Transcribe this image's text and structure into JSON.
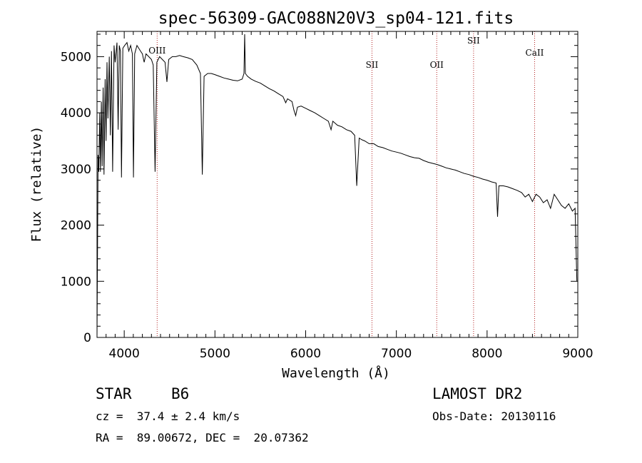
{
  "chart_data": {
    "type": "line",
    "title": "spec-56309-GAC088N20V3_sp04-121.fits",
    "xlabel": "Wavelength (Å)",
    "ylabel": "Flux (relative)",
    "xlim": [
      3700,
      9000
    ],
    "ylim": [
      0,
      5450
    ],
    "xticks": [
      4000,
      5000,
      6000,
      7000,
      8000,
      9000
    ],
    "yticks": [
      0,
      1000,
      2000,
      3000,
      4000,
      5000
    ],
    "grid": false,
    "series": [
      {
        "points": [
          [
            3700,
            0
          ],
          [
            3705,
            1300
          ],
          [
            3712,
            3250
          ],
          [
            3720,
            2950
          ],
          [
            3730,
            4000
          ],
          [
            3738,
            2950
          ],
          [
            3748,
            4200
          ],
          [
            3757,
            3050
          ],
          [
            3768,
            4450
          ],
          [
            3777,
            2900
          ],
          [
            3790,
            4600
          ],
          [
            3800,
            3500
          ],
          [
            3810,
            4900
          ],
          [
            3820,
            3900
          ],
          [
            3835,
            5000
          ],
          [
            3847,
            3600
          ],
          [
            3860,
            5100
          ],
          [
            3872,
            2950
          ],
          [
            3888,
            5200
          ],
          [
            3900,
            4900
          ],
          [
            3920,
            5250
          ],
          [
            3933,
            3700
          ],
          [
            3945,
            5200
          ],
          [
            3958,
            5100
          ],
          [
            3970,
            2850
          ],
          [
            3985,
            5150
          ],
          [
            4005,
            5200
          ],
          [
            4030,
            5250
          ],
          [
            4050,
            5100
          ],
          [
            4070,
            5200
          ],
          [
            4090,
            5050
          ],
          [
            4102,
            2850
          ],
          [
            4115,
            5050
          ],
          [
            4140,
            5200
          ],
          [
            4160,
            5150
          ],
          [
            4180,
            5100
          ],
          [
            4200,
            5050
          ],
          [
            4220,
            4900
          ],
          [
            4240,
            5050
          ],
          [
            4270,
            5000
          ],
          [
            4300,
            4950
          ],
          [
            4320,
            4850
          ],
          [
            4340,
            2950
          ],
          [
            4360,
            4900
          ],
          [
            4390,
            5000
          ],
          [
            4420,
            4950
          ],
          [
            4450,
            4900
          ],
          [
            4471,
            4550
          ],
          [
            4490,
            4950
          ],
          [
            4530,
            5000
          ],
          [
            4570,
            5000
          ],
          [
            4610,
            5020
          ],
          [
            4650,
            5000
          ],
          [
            4700,
            4980
          ],
          [
            4750,
            4950
          ],
          [
            4800,
            4850
          ],
          [
            4840,
            4700
          ],
          [
            4861,
            2900
          ],
          [
            4880,
            4650
          ],
          [
            4920,
            4700
          ],
          [
            4960,
            4700
          ],
          [
            5000,
            4680
          ],
          [
            5050,
            4650
          ],
          [
            5100,
            4620
          ],
          [
            5150,
            4600
          ],
          [
            5200,
            4580
          ],
          [
            5250,
            4570
          ],
          [
            5300,
            4600
          ],
          [
            5320,
            4700
          ],
          [
            5328,
            5400
          ],
          [
            5336,
            4700
          ],
          [
            5360,
            4650
          ],
          [
            5400,
            4600
          ],
          [
            5450,
            4560
          ],
          [
            5500,
            4530
          ],
          [
            5550,
            4480
          ],
          [
            5600,
            4430
          ],
          [
            5650,
            4390
          ],
          [
            5700,
            4340
          ],
          [
            5750,
            4290
          ],
          [
            5780,
            4180
          ],
          [
            5800,
            4250
          ],
          [
            5850,
            4200
          ],
          [
            5870,
            4050
          ],
          [
            5890,
            3950
          ],
          [
            5910,
            4100
          ],
          [
            5950,
            4120
          ],
          [
            6000,
            4080
          ],
          [
            6050,
            4040
          ],
          [
            6100,
            4000
          ],
          [
            6150,
            3950
          ],
          [
            6200,
            3900
          ],
          [
            6250,
            3850
          ],
          [
            6280,
            3700
          ],
          [
            6300,
            3850
          ],
          [
            6350,
            3780
          ],
          [
            6400,
            3750
          ],
          [
            6450,
            3700
          ],
          [
            6500,
            3670
          ],
          [
            6540,
            3600
          ],
          [
            6563,
            2700
          ],
          [
            6590,
            3550
          ],
          [
            6620,
            3520
          ],
          [
            6650,
            3500
          ],
          [
            6700,
            3450
          ],
          [
            6750,
            3450
          ],
          [
            6800,
            3400
          ],
          [
            6850,
            3380
          ],
          [
            6900,
            3350
          ],
          [
            6950,
            3320
          ],
          [
            7000,
            3300
          ],
          [
            7050,
            3280
          ],
          [
            7100,
            3250
          ],
          [
            7150,
            3220
          ],
          [
            7200,
            3200
          ],
          [
            7250,
            3190
          ],
          [
            7300,
            3150
          ],
          [
            7350,
            3120
          ],
          [
            7400,
            3100
          ],
          [
            7450,
            3080
          ],
          [
            7500,
            3050
          ],
          [
            7550,
            3020
          ],
          [
            7600,
            3000
          ],
          [
            7650,
            2980
          ],
          [
            7700,
            2950
          ],
          [
            7750,
            2920
          ],
          [
            7800,
            2900
          ],
          [
            7850,
            2870
          ],
          [
            7900,
            2850
          ],
          [
            7950,
            2820
          ],
          [
            8000,
            2800
          ],
          [
            8050,
            2770
          ],
          [
            8100,
            2750
          ],
          [
            8115,
            2150
          ],
          [
            8130,
            2700
          ],
          [
            8180,
            2700
          ],
          [
            8230,
            2680
          ],
          [
            8280,
            2650
          ],
          [
            8330,
            2620
          ],
          [
            8380,
            2580
          ],
          [
            8420,
            2500
          ],
          [
            8460,
            2550
          ],
          [
            8500,
            2420
          ],
          [
            8540,
            2550
          ],
          [
            8580,
            2500
          ],
          [
            8620,
            2400
          ],
          [
            8662,
            2450
          ],
          [
            8700,
            2300
          ],
          [
            8740,
            2550
          ],
          [
            8780,
            2450
          ],
          [
            8820,
            2350
          ],
          [
            8860,
            2300
          ],
          [
            8900,
            2380
          ],
          [
            8940,
            2250
          ],
          [
            8970,
            2300
          ],
          [
            8985,
            1300
          ],
          [
            8990,
            1000
          ]
        ]
      }
    ],
    "lines": [
      {
        "label": "OIII",
        "x": 4363
      },
      {
        "label": "SII",
        "x": 6731
      },
      {
        "label": "OII",
        "x": 7445
      },
      {
        "label": "SII",
        "x": 7851
      },
      {
        "label": "CaII",
        "x": 8524
      }
    ]
  },
  "info": {
    "object_class": "STAR",
    "subclass": "B6",
    "survey": "LAMOST DR2",
    "redshift": "cz =  37.4 ± 2.4 km/s",
    "obs_date": "Obs-Date: 20130116",
    "coords": "RA =  89.00672, DEC =  20.07362"
  },
  "colors": {
    "spectrum": "#000000",
    "line_markers": "#b22222",
    "axes": "#000000"
  }
}
